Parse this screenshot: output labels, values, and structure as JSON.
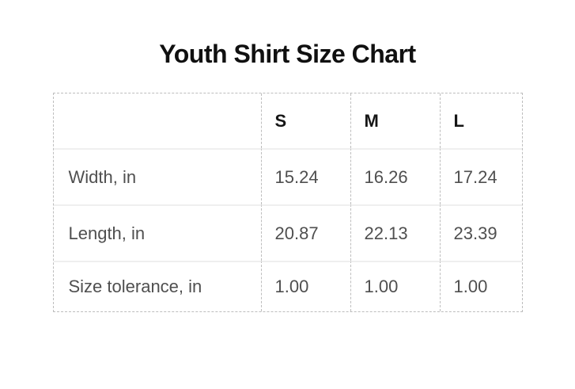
{
  "chart_data": {
    "type": "table",
    "title": "Youth Shirt Size Chart",
    "columns": [
      "",
      "S",
      "M",
      "L"
    ],
    "rows": [
      {
        "label": "Width, in",
        "values": [
          "15.24",
          "16.26",
          "17.24"
        ]
      },
      {
        "label": "Length, in",
        "values": [
          "20.87",
          "22.13",
          "23.39"
        ]
      },
      {
        "label": "Size tolerance, in",
        "values": [
          "1.00",
          "1.00",
          "1.00"
        ]
      }
    ],
    "layout_hints": {
      "outer_border": "dashed",
      "column_separators": "dashed",
      "row_dividers": "solid-light",
      "header_style": "bold"
    }
  },
  "colors": {
    "background": "#ffffff",
    "title_text": "#101010",
    "header_text": "#161616",
    "cell_text": "#4f4f4f",
    "dashed_border": "#bdbdbd",
    "row_divider": "#efefef"
  }
}
